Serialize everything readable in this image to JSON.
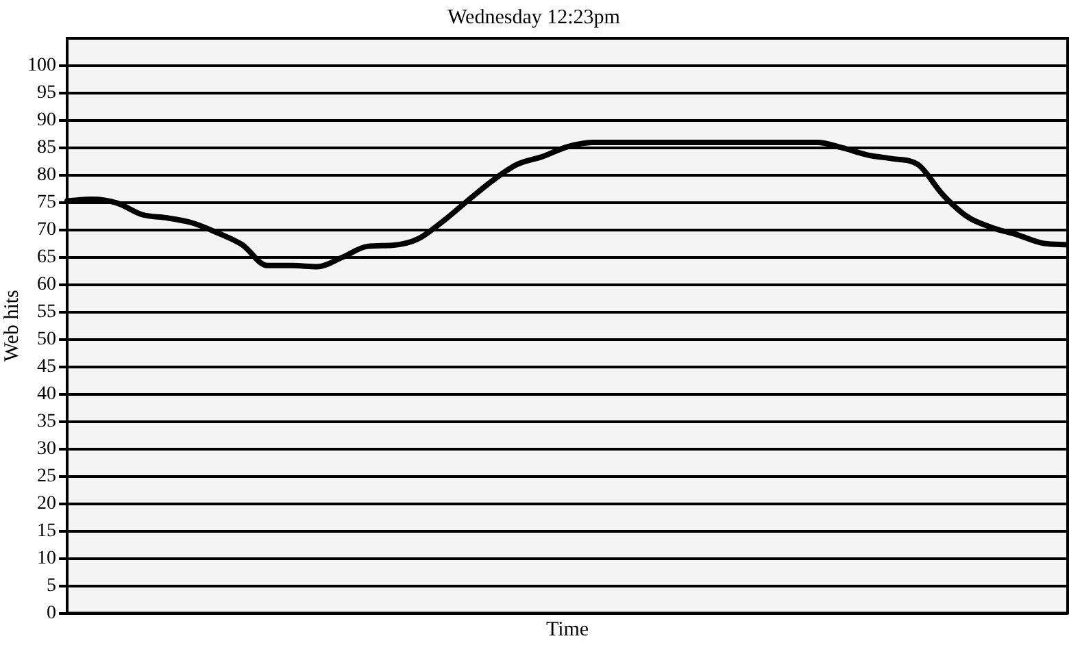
{
  "chart_data": {
    "type": "line",
    "title": "Wednesday 12:23pm",
    "xlabel": "Time",
    "ylabel": "Web hits",
    "categories": [
      null,
      null,
      null,
      null,
      null,
      null,
      null,
      null,
      null,
      null,
      null,
      null,
      null,
      null,
      null,
      null,
      null,
      null,
      null,
      null,
      null,
      null,
      null,
      null,
      null,
      null,
      null,
      null,
      null,
      null,
      null,
      null,
      null,
      null,
      null,
      null,
      null,
      null,
      null,
      null,
      null
    ],
    "series": [
      {
        "color": "#000000",
        "values": [
          75.3,
          75.6,
          74.9,
          72.8,
          72.2,
          71.3,
          69.5,
          67.3,
          63.5,
          63.5,
          63.3,
          65,
          67,
          67.2,
          68.3,
          71.5,
          75.3,
          79,
          82,
          83.4,
          85.2,
          86,
          86,
          86,
          86,
          86,
          86,
          86,
          86,
          86,
          86,
          85,
          83.7,
          83,
          82,
          76.5,
          72.4,
          70.4,
          69.1,
          67.6,
          67.3
        ]
      }
    ],
    "ylim": [
      0,
      105
    ],
    "yticks": [
      0,
      5,
      10,
      15,
      20,
      25,
      30,
      35,
      40,
      45,
      50,
      55,
      60,
      65,
      70,
      75,
      80,
      85,
      90,
      95,
      100
    ],
    "grid": "y",
    "legend": false,
    "marker": "none",
    "line_style": "solid"
  }
}
